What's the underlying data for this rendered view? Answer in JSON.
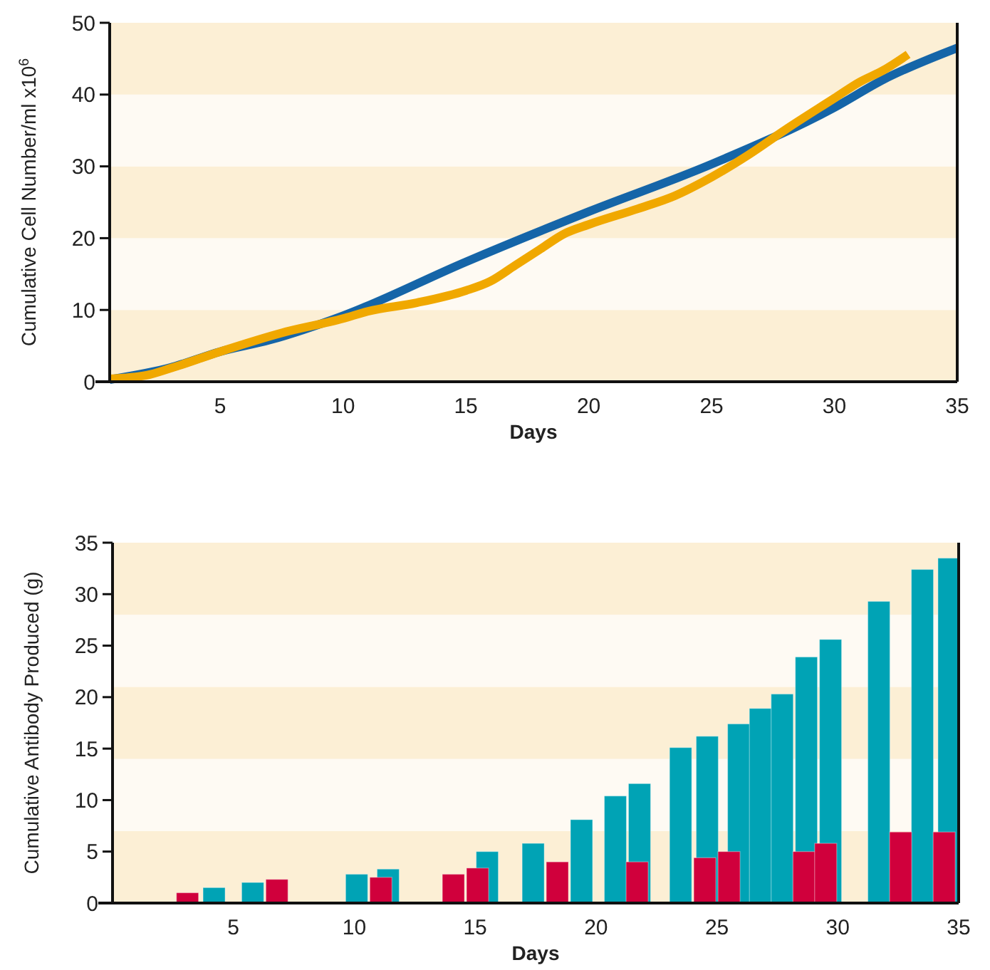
{
  "chart_data": [
    {
      "type": "line",
      "xlabel": "Days",
      "ylabel": "Cumulative Cell Number/ml x10$^{6}$",
      "xlim": [
        0.5,
        35
      ],
      "xticks": [
        5,
        10,
        15,
        20,
        25,
        30,
        35
      ],
      "ylim": [
        0,
        50
      ],
      "yticks": [
        0,
        10,
        20,
        30,
        40,
        50
      ],
      "marker": "none",
      "line_style": "solid",
      "bands": [
        {
          "axis": "y",
          "from": 0,
          "to": 10,
          "color": "#fcefd5"
        },
        {
          "axis": "y",
          "from": 10,
          "to": 20,
          "color": "#fefaf3"
        },
        {
          "axis": "y",
          "from": 20,
          "to": 30,
          "color": "#fcefd5"
        },
        {
          "axis": "y",
          "from": 30,
          "to": 40,
          "color": "#fefaf3"
        },
        {
          "axis": "y",
          "from": 40,
          "to": 50,
          "color": "#fcefd5"
        }
      ],
      "series": [
        {
          "color": "#1565a8",
          "x": [
            0.5,
            3,
            5,
            7,
            10,
            15,
            20,
            25,
            30,
            32,
            35
          ],
          "values": [
            0.3,
            2,
            4.2,
            5.8,
            9.2,
            16.7,
            23.7,
            30.3,
            38.2,
            42.1,
            46.5
          ]
        },
        {
          "color": "#f0a800",
          "x": [
            0.5,
            2,
            3,
            5,
            7.5,
            10,
            11,
            13,
            15,
            16,
            17,
            18,
            19,
            20,
            22,
            23.5,
            25,
            26.5,
            28,
            30,
            31,
            32,
            33
          ],
          "values": [
            0.4,
            0.9,
            1.9,
            4.2,
            6.8,
            8.8,
            9.8,
            11,
            12.7,
            14,
            16.2,
            18.4,
            20.6,
            21.9,
            24.1,
            25.9,
            28.5,
            31.6,
            35.1,
            39.5,
            41.7,
            43.4,
            45.6
          ]
        }
      ]
    },
    {
      "type": "bar",
      "xlabel": "Days",
      "ylabel": "Cumulative Antibody Produced (g)",
      "xlim": [
        0,
        35
      ],
      "xticks": [
        5,
        10,
        15,
        20,
        25,
        30,
        35
      ],
      "ylim": [
        0,
        35
      ],
      "yticks": [
        0,
        5,
        10,
        15,
        20,
        25,
        30,
        35
      ],
      "bands": [
        {
          "axis": "y",
          "from": 0,
          "to": 7,
          "color": "#fcefd5"
        },
        {
          "axis": "y",
          "from": 7,
          "to": 14,
          "color": "#fefaf3"
        },
        {
          "axis": "y",
          "from": 14,
          "to": 21,
          "color": "#fcefd5"
        },
        {
          "axis": "y",
          "from": 21,
          "to": 28,
          "color": "#fefaf3"
        },
        {
          "axis": "y",
          "from": 28,
          "to": 35,
          "color": "#fcefd5"
        }
      ],
      "series": [
        {
          "color": "#00a3b5",
          "x": [
            4.2,
            5.8,
            10.1,
            11.4,
            15.5,
            17.4,
            19.4,
            20.8,
            21.8,
            23.5,
            24.6,
            25.9,
            26.8,
            27.7,
            28.7,
            29.7,
            31.7,
            33.5,
            34.6
          ],
          "values": [
            1.5,
            2,
            2.8,
            3.3,
            5,
            5.8,
            8.1,
            10.4,
            11.6,
            15.1,
            16.2,
            17.4,
            18.9,
            20.3,
            23.9,
            25.6,
            29.3,
            32.4,
            33.5
          ]
        },
        {
          "color": "#d0003c",
          "x": [
            3.1,
            6.8,
            11.1,
            14.1,
            15.1,
            18.4,
            21.7,
            24.5,
            25.5,
            28.6,
            29.5,
            32.6,
            34.4
          ],
          "values": [
            1,
            2.3,
            2.5,
            2.8,
            3.4,
            4,
            4,
            4.4,
            5,
            5,
            5.8,
            6.9,
            6.9
          ]
        }
      ]
    }
  ]
}
